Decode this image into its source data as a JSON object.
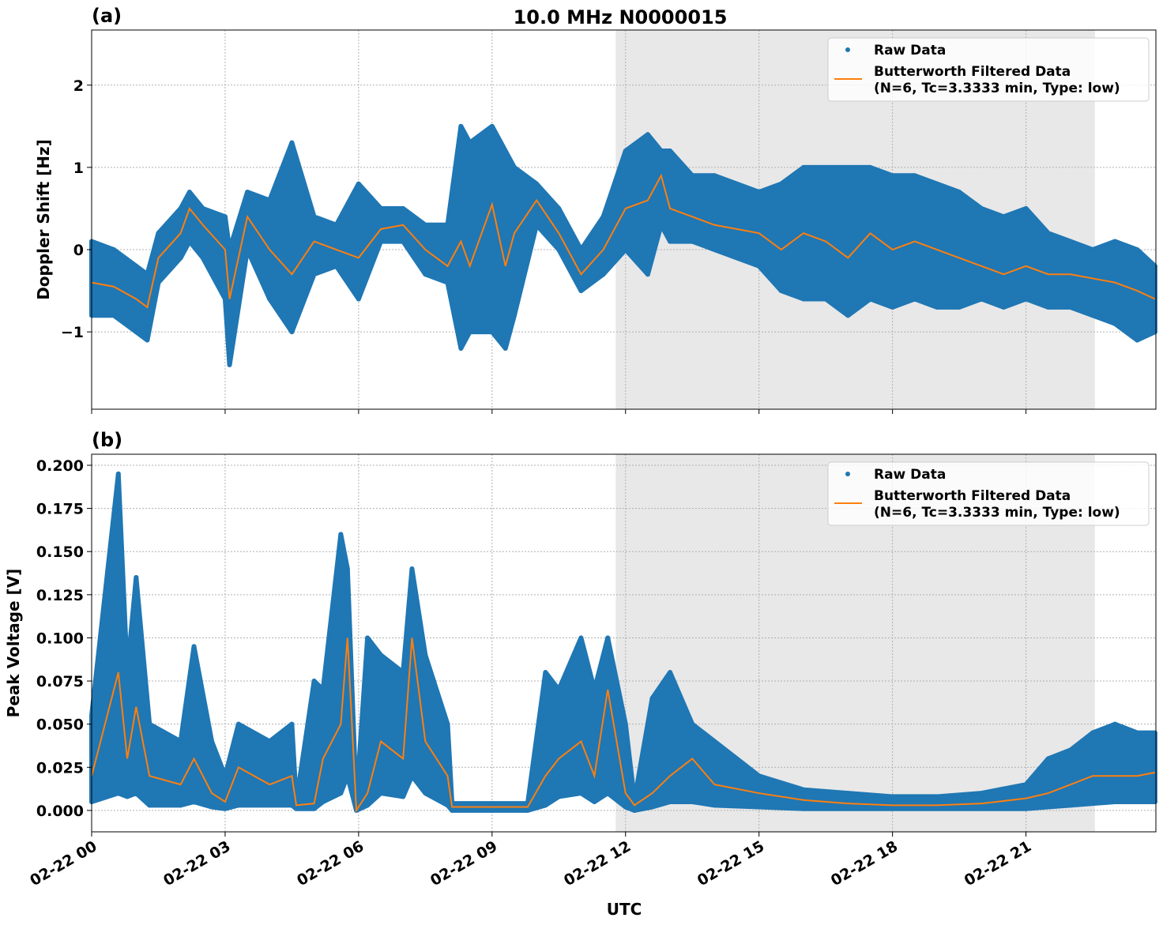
{
  "title": "10.0 MHz N0000015",
  "colors": {
    "raw": "#1f77b4",
    "filtered": "#ff7f0e",
    "shade": "#e8e8e8",
    "grid": "#b0b0b0"
  },
  "chart_data": [
    {
      "type": "scatter",
      "panel_label": "(a)",
      "ylabel": "Doppler Shift [Hz]",
      "xlabel": "",
      "xlim_hours": [
        0,
        23.92
      ],
      "ylim": [
        -1.94,
        2.67
      ],
      "yticks": [
        -1,
        0,
        1,
        2
      ],
      "ytick_labels": [
        "−1",
        "0",
        "1",
        "2"
      ],
      "xticks_hours": [
        0,
        3,
        6,
        9,
        12,
        15,
        18,
        21
      ],
      "xtick_labels": [],
      "grid": true,
      "shaded_interval_hours": [
        11.78,
        22.55
      ],
      "legend": {
        "placement": "top-right",
        "entries": [
          "Raw Data",
          "Butterworth Filtered Data",
          "(N=6, Tc=3.3333 min, Type: low)"
        ]
      },
      "x_hours": [
        0,
        0.5,
        1,
        1.25,
        1.5,
        2,
        2.2,
        2.5,
        3,
        3.1,
        3.5,
        4,
        4.5,
        5,
        5.5,
        6,
        6.5,
        7,
        7.5,
        8,
        8.3,
        8.5,
        9,
        9.3,
        9.5,
        10,
        10.5,
        11,
        11.5,
        12,
        12.5,
        12.8,
        13,
        13.5,
        14,
        15,
        15.5,
        16,
        16.5,
        17,
        17.5,
        18,
        18.5,
        19,
        19.5,
        20,
        20.5,
        21,
        21.5,
        22,
        22.5,
        23,
        23.5,
        23.9
      ],
      "series": [
        {
          "name": "Butterworth Filtered Data",
          "values": [
            -0.4,
            -0.45,
            -0.6,
            -0.7,
            -0.1,
            0.2,
            0.5,
            0.3,
            0.0,
            -0.6,
            0.4,
            0.0,
            -0.3,
            0.1,
            0.0,
            -0.1,
            0.25,
            0.3,
            0.0,
            -0.2,
            0.1,
            -0.2,
            0.55,
            -0.2,
            0.2,
            0.6,
            0.2,
            -0.3,
            0.0,
            0.5,
            0.6,
            0.9,
            0.5,
            0.4,
            0.3,
            0.2,
            0.0,
            0.2,
            0.1,
            -0.1,
            0.2,
            0.0,
            0.1,
            0.0,
            -0.1,
            -0.2,
            -0.3,
            -0.2,
            -0.3,
            -0.3,
            -0.35,
            -0.4,
            -0.5,
            -0.6
          ]
        },
        {
          "name": "Raw Data",
          "upper": [
            0.1,
            0.0,
            -0.2,
            -0.3,
            0.2,
            0.5,
            0.7,
            0.5,
            0.4,
            0.0,
            0.7,
            0.6,
            1.3,
            0.4,
            0.3,
            0.8,
            0.5,
            0.5,
            0.3,
            0.3,
            1.5,
            1.3,
            1.5,
            1.2,
            1.0,
            0.8,
            0.5,
            0.0,
            0.4,
            1.2,
            1.4,
            1.2,
            1.2,
            0.9,
            0.9,
            0.7,
            0.8,
            1.0,
            1.0,
            1.0,
            1.0,
            0.9,
            0.9,
            0.8,
            0.7,
            0.5,
            0.4,
            0.5,
            0.2,
            0.1,
            0.0,
            0.1,
            0.0,
            -0.2
          ],
          "lower": [
            -0.8,
            -0.8,
            -1.0,
            -1.1,
            -0.4,
            -0.1,
            0.1,
            -0.1,
            -0.6,
            -1.4,
            0.0,
            -0.6,
            -1.0,
            -0.3,
            -0.2,
            -0.6,
            0.1,
            0.1,
            -0.3,
            -0.4,
            -1.2,
            -1.0,
            -1.0,
            -1.2,
            -0.8,
            0.3,
            0.0,
            -0.5,
            -0.3,
            0.0,
            -0.3,
            0.3,
            0.1,
            0.1,
            0.0,
            -0.2,
            -0.5,
            -0.6,
            -0.6,
            -0.8,
            -0.6,
            -0.7,
            -0.6,
            -0.7,
            -0.7,
            -0.6,
            -0.7,
            -0.6,
            -0.7,
            -0.7,
            -0.8,
            -0.9,
            -1.1,
            -1.0
          ]
        }
      ]
    },
    {
      "type": "scatter",
      "panel_label": "(b)",
      "ylabel": "Peak Voltage [V]",
      "xlabel": "UTC",
      "xlim_hours": [
        0,
        23.92
      ],
      "ylim": [
        -0.0124,
        0.2064
      ],
      "yticks": [
        0,
        0.025,
        0.05,
        0.075,
        0.1,
        0.125,
        0.15,
        0.175,
        0.2
      ],
      "ytick_labels": [
        "0.000",
        "0.025",
        "0.050",
        "0.075",
        "0.100",
        "0.125",
        "0.150",
        "0.175",
        "0.200"
      ],
      "xticks_hours": [
        0,
        3,
        6,
        9,
        12,
        15,
        18,
        21
      ],
      "xtick_labels": [
        "02-22 00",
        "02-22 03",
        "02-22 06",
        "02-22 09",
        "02-22 12",
        "02-22 15",
        "02-22 18",
        "02-22 21"
      ],
      "grid": true,
      "shaded_interval_hours": [
        11.78,
        22.55
      ],
      "legend": {
        "placement": "top-right",
        "entries": [
          "Raw Data",
          "Butterworth Filtered Data",
          "(N=6, Tc=3.3333 min, Type: low)"
        ]
      },
      "x_hours": [
        0,
        0.6,
        0.8,
        1.0,
        1.3,
        2.0,
        2.3,
        2.7,
        3.0,
        3.3,
        4.0,
        4.5,
        4.6,
        5.0,
        5.2,
        5.6,
        5.75,
        5.95,
        6.2,
        6.5,
        7.0,
        7.2,
        7.5,
        8.0,
        8.1,
        9.0,
        9.8,
        10.2,
        10.5,
        11.0,
        11.3,
        11.6,
        12.0,
        12.2,
        12.6,
        13.0,
        13.5,
        14.0,
        15.0,
        16.0,
        17.0,
        18.0,
        19.0,
        20.0,
        21.0,
        21.5,
        22.0,
        22.5,
        23.0,
        23.5,
        23.9
      ],
      "series": [
        {
          "name": "Butterworth Filtered Data",
          "values": [
            0.02,
            0.08,
            0.03,
            0.06,
            0.02,
            0.015,
            0.03,
            0.01,
            0.005,
            0.025,
            0.015,
            0.02,
            0.003,
            0.004,
            0.03,
            0.05,
            0.1,
            0.0,
            0.01,
            0.04,
            0.03,
            0.1,
            0.04,
            0.02,
            0.002,
            0.002,
            0.002,
            0.02,
            0.03,
            0.04,
            0.02,
            0.07,
            0.01,
            0.003,
            0.01,
            0.02,
            0.03,
            0.015,
            0.01,
            0.006,
            0.004,
            0.003,
            0.003,
            0.004,
            0.007,
            0.01,
            0.015,
            0.02,
            0.02,
            0.02,
            0.022
          ]
        },
        {
          "name": "Raw Data",
          "upper": [
            0.055,
            0.195,
            0.08,
            0.135,
            0.05,
            0.04,
            0.095,
            0.04,
            0.02,
            0.05,
            0.04,
            0.05,
            0.005,
            0.075,
            0.07,
            0.16,
            0.14,
            0.005,
            0.1,
            0.09,
            0.08,
            0.14,
            0.09,
            0.05,
            0.004,
            0.004,
            0.004,
            0.08,
            0.07,
            0.1,
            0.07,
            0.1,
            0.05,
            0.006,
            0.065,
            0.08,
            0.05,
            0.04,
            0.02,
            0.012,
            0.01,
            0.008,
            0.008,
            0.01,
            0.015,
            0.03,
            0.035,
            0.045,
            0.05,
            0.045,
            0.045
          ],
          "lower": [
            0.005,
            0.01,
            0.008,
            0.01,
            0.003,
            0.003,
            0.005,
            0.002,
            0.001,
            0.003,
            0.003,
            0.003,
            0.001,
            0.001,
            0.005,
            0.01,
            0.02,
            0.0,
            0.003,
            0.01,
            0.008,
            0.02,
            0.01,
            0.003,
            0.0,
            0.0,
            0.0,
            0.003,
            0.008,
            0.01,
            0.005,
            0.01,
            0.002,
            0.0,
            0.002,
            0.005,
            0.005,
            0.003,
            0.002,
            0.001,
            0.001,
            0.001,
            0.001,
            0.001,
            0.001,
            0.002,
            0.003,
            0.004,
            0.005,
            0.005,
            0.005
          ]
        }
      ]
    }
  ]
}
